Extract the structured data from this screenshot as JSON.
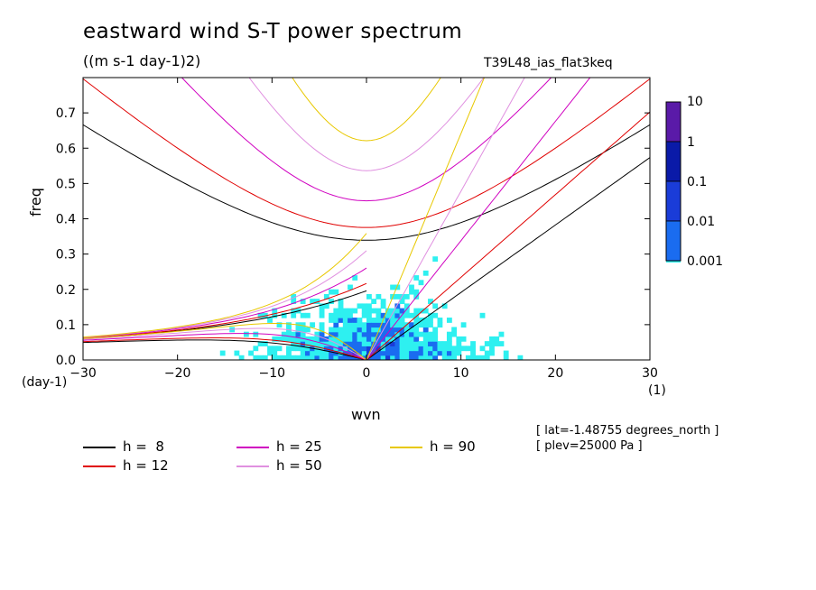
{
  "header": {
    "title": "eastward wind S-T power spectrum",
    "units": "((m s-1 day-1)2)",
    "experiment": "T39L48_ias_flat3keq"
  },
  "info": {
    "lat": "[ lat=-1.48755 degrees_north ]",
    "plev": "[ plev=25000 Pa ]"
  },
  "colorbar": {
    "labels": [
      "10",
      "1",
      "0.1",
      "0.01",
      "0.001"
    ],
    "colors": [
      "#5a1aa8",
      "#0a1aa8",
      "#1a3cd8",
      "#1a6cf0",
      "#2ef0f0"
    ]
  },
  "legend": [
    {
      "label": "h =  8",
      "color": "#000000"
    },
    {
      "label": "h = 12",
      "color": "#e00000"
    },
    {
      "label": "h = 25",
      "color": "#d000c0"
    },
    {
      "label": "h = 50",
      "color": "#e090e0"
    },
    {
      "label": "h = 90",
      "color": "#e8c800"
    }
  ],
  "chart_data": {
    "type": "heatmap",
    "title": "eastward wind S-T power spectrum",
    "xlabel": "wvn",
    "ylabel": "freq",
    "xunit": "(1)",
    "yunit": "(day-1)",
    "xlim": [
      -30,
      30
    ],
    "ylim": [
      0,
      0.8
    ],
    "xticks": [
      -30,
      -20,
      -10,
      0,
      10,
      20,
      30
    ],
    "xtick_labels": [
      "−30",
      "−20",
      "−10",
      "0",
      "10",
      "20",
      "30"
    ],
    "yticks": [
      0,
      0.1,
      0.2,
      0.3,
      0.4,
      0.5,
      0.6,
      0.7
    ],
    "ytick_labels": [
      "0.0",
      "0.1",
      "0.2",
      "0.3",
      "0.4",
      "0.5",
      "0.6",
      "0.7"
    ],
    "levels": [
      0.001,
      0.01,
      0.1,
      1,
      10
    ],
    "dispersion_curves": [
      {
        "label": "h =  8",
        "color": "#000000"
      },
      {
        "label": "h = 12",
        "color": "#e00000"
      },
      {
        "label": "h = 25",
        "color": "#d000c0"
      },
      {
        "label": "h = 50",
        "color": "#e090e0"
      },
      {
        "label": "h = 90",
        "color": "#e8c800"
      }
    ]
  }
}
